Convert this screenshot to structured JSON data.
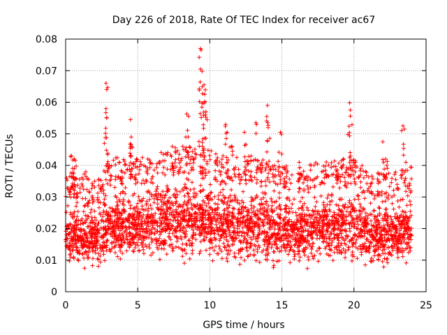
{
  "chart_data": {
    "type": "scatter",
    "title": "Day 226 of 2018, Rate Of TEC Index for receiver ac67",
    "xlabel": "GPS time / hours",
    "ylabel": "ROTI / TECUs",
    "xlim": [
      0,
      25
    ],
    "ylim": [
      0,
      0.08
    ],
    "xticks": [
      0,
      5,
      10,
      15,
      20,
      25
    ],
    "xtick_labels": [
      "0",
      "5",
      "10",
      "15",
      "20",
      "25"
    ],
    "yticks": [
      0,
      0.01,
      0.02,
      0.03,
      0.04,
      0.05,
      0.06,
      0.07,
      0.08
    ],
    "ytick_labels": [
      "0",
      "0.01",
      "0.02",
      "0.03",
      "0.04",
      "0.05",
      "0.06",
      "0.07",
      "0.08"
    ],
    "grid": true,
    "marker": "plus",
    "series": [
      {
        "name": "ROTI",
        "color": "#ff0000",
        "bulk_profile": {
          "x": [
            0,
            1,
            2,
            3,
            4,
            5,
            6,
            7,
            8,
            9,
            10,
            11,
            12,
            13,
            14,
            15,
            16,
            17,
            18,
            19,
            20,
            21,
            22,
            23,
            24
          ],
          "low": [
            0.007,
            0.006,
            0.006,
            0.006,
            0.007,
            0.007,
            0.008,
            0.008,
            0.008,
            0.008,
            0.007,
            0.006,
            0.006,
            0.006,
            0.005,
            0.006,
            0.006,
            0.006,
            0.007,
            0.007,
            0.006,
            0.006,
            0.006,
            0.006,
            0.006
          ],
          "high": [
            0.03,
            0.028,
            0.026,
            0.033,
            0.034,
            0.034,
            0.034,
            0.036,
            0.037,
            0.038,
            0.036,
            0.034,
            0.034,
            0.034,
            0.035,
            0.032,
            0.031,
            0.032,
            0.032,
            0.034,
            0.033,
            0.03,
            0.028,
            0.03,
            0.031
          ]
        },
        "peaks": [
          {
            "x": 0.4,
            "y": 0.043
          },
          {
            "x": 0.6,
            "y": 0.042
          },
          {
            "x": 1.4,
            "y": 0.038
          },
          {
            "x": 2.8,
            "y": 0.066
          },
          {
            "x": 2.85,
            "y": 0.064
          },
          {
            "x": 2.8,
            "y": 0.058
          },
          {
            "x": 2.85,
            "y": 0.055
          },
          {
            "x": 4.5,
            "y": 0.0545
          },
          {
            "x": 4.55,
            "y": 0.049
          },
          {
            "x": 4.6,
            "y": 0.046
          },
          {
            "x": 7.4,
            "y": 0.046
          },
          {
            "x": 8.4,
            "y": 0.0563
          },
          {
            "x": 8.5,
            "y": 0.049
          },
          {
            "x": 9.35,
            "y": 0.077
          },
          {
            "x": 9.4,
            "y": 0.0765
          },
          {
            "x": 9.35,
            "y": 0.0705
          },
          {
            "x": 9.6,
            "y": 0.0655
          },
          {
            "x": 9.65,
            "y": 0.0625
          },
          {
            "x": 9.55,
            "y": 0.0598
          },
          {
            "x": 9.7,
            "y": 0.056
          },
          {
            "x": 11.1,
            "y": 0.053
          },
          {
            "x": 11.2,
            "y": 0.0505
          },
          {
            "x": 11.5,
            "y": 0.046
          },
          {
            "x": 12.4,
            "y": 0.0505
          },
          {
            "x": 13.2,
            "y": 0.0535
          },
          {
            "x": 14.0,
            "y": 0.059
          },
          {
            "x": 13.95,
            "y": 0.0555
          },
          {
            "x": 14.05,
            "y": 0.052
          },
          {
            "x": 14.9,
            "y": 0.0505
          },
          {
            "x": 16.2,
            "y": 0.041
          },
          {
            "x": 18.8,
            "y": 0.038
          },
          {
            "x": 19.7,
            "y": 0.0598
          },
          {
            "x": 19.75,
            "y": 0.0575
          },
          {
            "x": 19.7,
            "y": 0.0425
          },
          {
            "x": 22.0,
            "y": 0.0475
          },
          {
            "x": 22.2,
            "y": 0.042
          },
          {
            "x": 23.4,
            "y": 0.0525
          },
          {
            "x": 23.5,
            "y": 0.0515
          },
          {
            "x": 23.6,
            "y": 0.041
          }
        ]
      }
    ]
  }
}
